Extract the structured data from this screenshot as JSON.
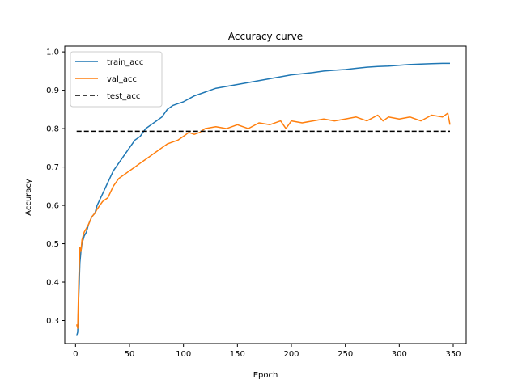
{
  "chart_data": {
    "type": "line",
    "title": "Accuracy curve",
    "xlabel": "Epoch",
    "ylabel": "Accuracy",
    "xlim": [
      -10,
      362
    ],
    "ylim": [
      0.24,
      1.015
    ],
    "xticks": [
      0,
      50,
      100,
      150,
      200,
      250,
      300,
      350
    ],
    "yticks": [
      0.3,
      0.4,
      0.5,
      0.6,
      0.7,
      0.8,
      0.9,
      1.0
    ],
    "grid": false,
    "legend_position": "top-left",
    "series": [
      {
        "name": "train_acc",
        "color": "#1f77b4",
        "style": "solid",
        "x": [
          1,
          2,
          3,
          4,
          5,
          6,
          8,
          10,
          12,
          15,
          18,
          20,
          25,
          30,
          35,
          40,
          45,
          50,
          55,
          60,
          65,
          70,
          75,
          80,
          85,
          90,
          95,
          100,
          110,
          120,
          130,
          140,
          150,
          160,
          170,
          180,
          190,
          200,
          210,
          220,
          230,
          240,
          250,
          260,
          270,
          280,
          290,
          300,
          310,
          320,
          330,
          340,
          347
        ],
        "y": [
          0.26,
          0.27,
          0.36,
          0.45,
          0.48,
          0.5,
          0.52,
          0.53,
          0.55,
          0.57,
          0.58,
          0.6,
          0.63,
          0.66,
          0.69,
          0.71,
          0.73,
          0.75,
          0.77,
          0.78,
          0.8,
          0.81,
          0.82,
          0.83,
          0.85,
          0.86,
          0.865,
          0.87,
          0.885,
          0.895,
          0.905,
          0.91,
          0.915,
          0.92,
          0.925,
          0.93,
          0.935,
          0.94,
          0.943,
          0.946,
          0.95,
          0.952,
          0.954,
          0.957,
          0.96,
          0.962,
          0.963,
          0.965,
          0.967,
          0.968,
          0.969,
          0.97,
          0.97
        ]
      },
      {
        "name": "val_acc",
        "color": "#ff7f0e",
        "style": "solid",
        "x": [
          1,
          2,
          3,
          4,
          5,
          6,
          8,
          10,
          12,
          15,
          18,
          20,
          25,
          30,
          35,
          40,
          45,
          50,
          55,
          60,
          65,
          70,
          75,
          80,
          85,
          90,
          95,
          100,
          105,
          110,
          115,
          120,
          130,
          140,
          150,
          160,
          170,
          180,
          190,
          195,
          200,
          210,
          220,
          230,
          240,
          250,
          260,
          270,
          280,
          285,
          290,
          300,
          310,
          320,
          330,
          340,
          345,
          347
        ],
        "y": [
          0.29,
          0.28,
          0.4,
          0.49,
          0.48,
          0.51,
          0.53,
          0.54,
          0.55,
          0.57,
          0.58,
          0.59,
          0.61,
          0.62,
          0.65,
          0.67,
          0.68,
          0.69,
          0.7,
          0.71,
          0.72,
          0.73,
          0.74,
          0.75,
          0.76,
          0.765,
          0.77,
          0.78,
          0.79,
          0.785,
          0.79,
          0.8,
          0.805,
          0.8,
          0.81,
          0.8,
          0.815,
          0.81,
          0.82,
          0.8,
          0.82,
          0.815,
          0.82,
          0.825,
          0.82,
          0.825,
          0.83,
          0.82,
          0.835,
          0.82,
          0.83,
          0.825,
          0.83,
          0.82,
          0.835,
          0.83,
          0.84,
          0.81
        ]
      },
      {
        "name": "test_acc",
        "color": "#000000",
        "style": "dashed",
        "x": [
          1,
          347
        ],
        "y": [
          0.793,
          0.793
        ]
      }
    ]
  }
}
